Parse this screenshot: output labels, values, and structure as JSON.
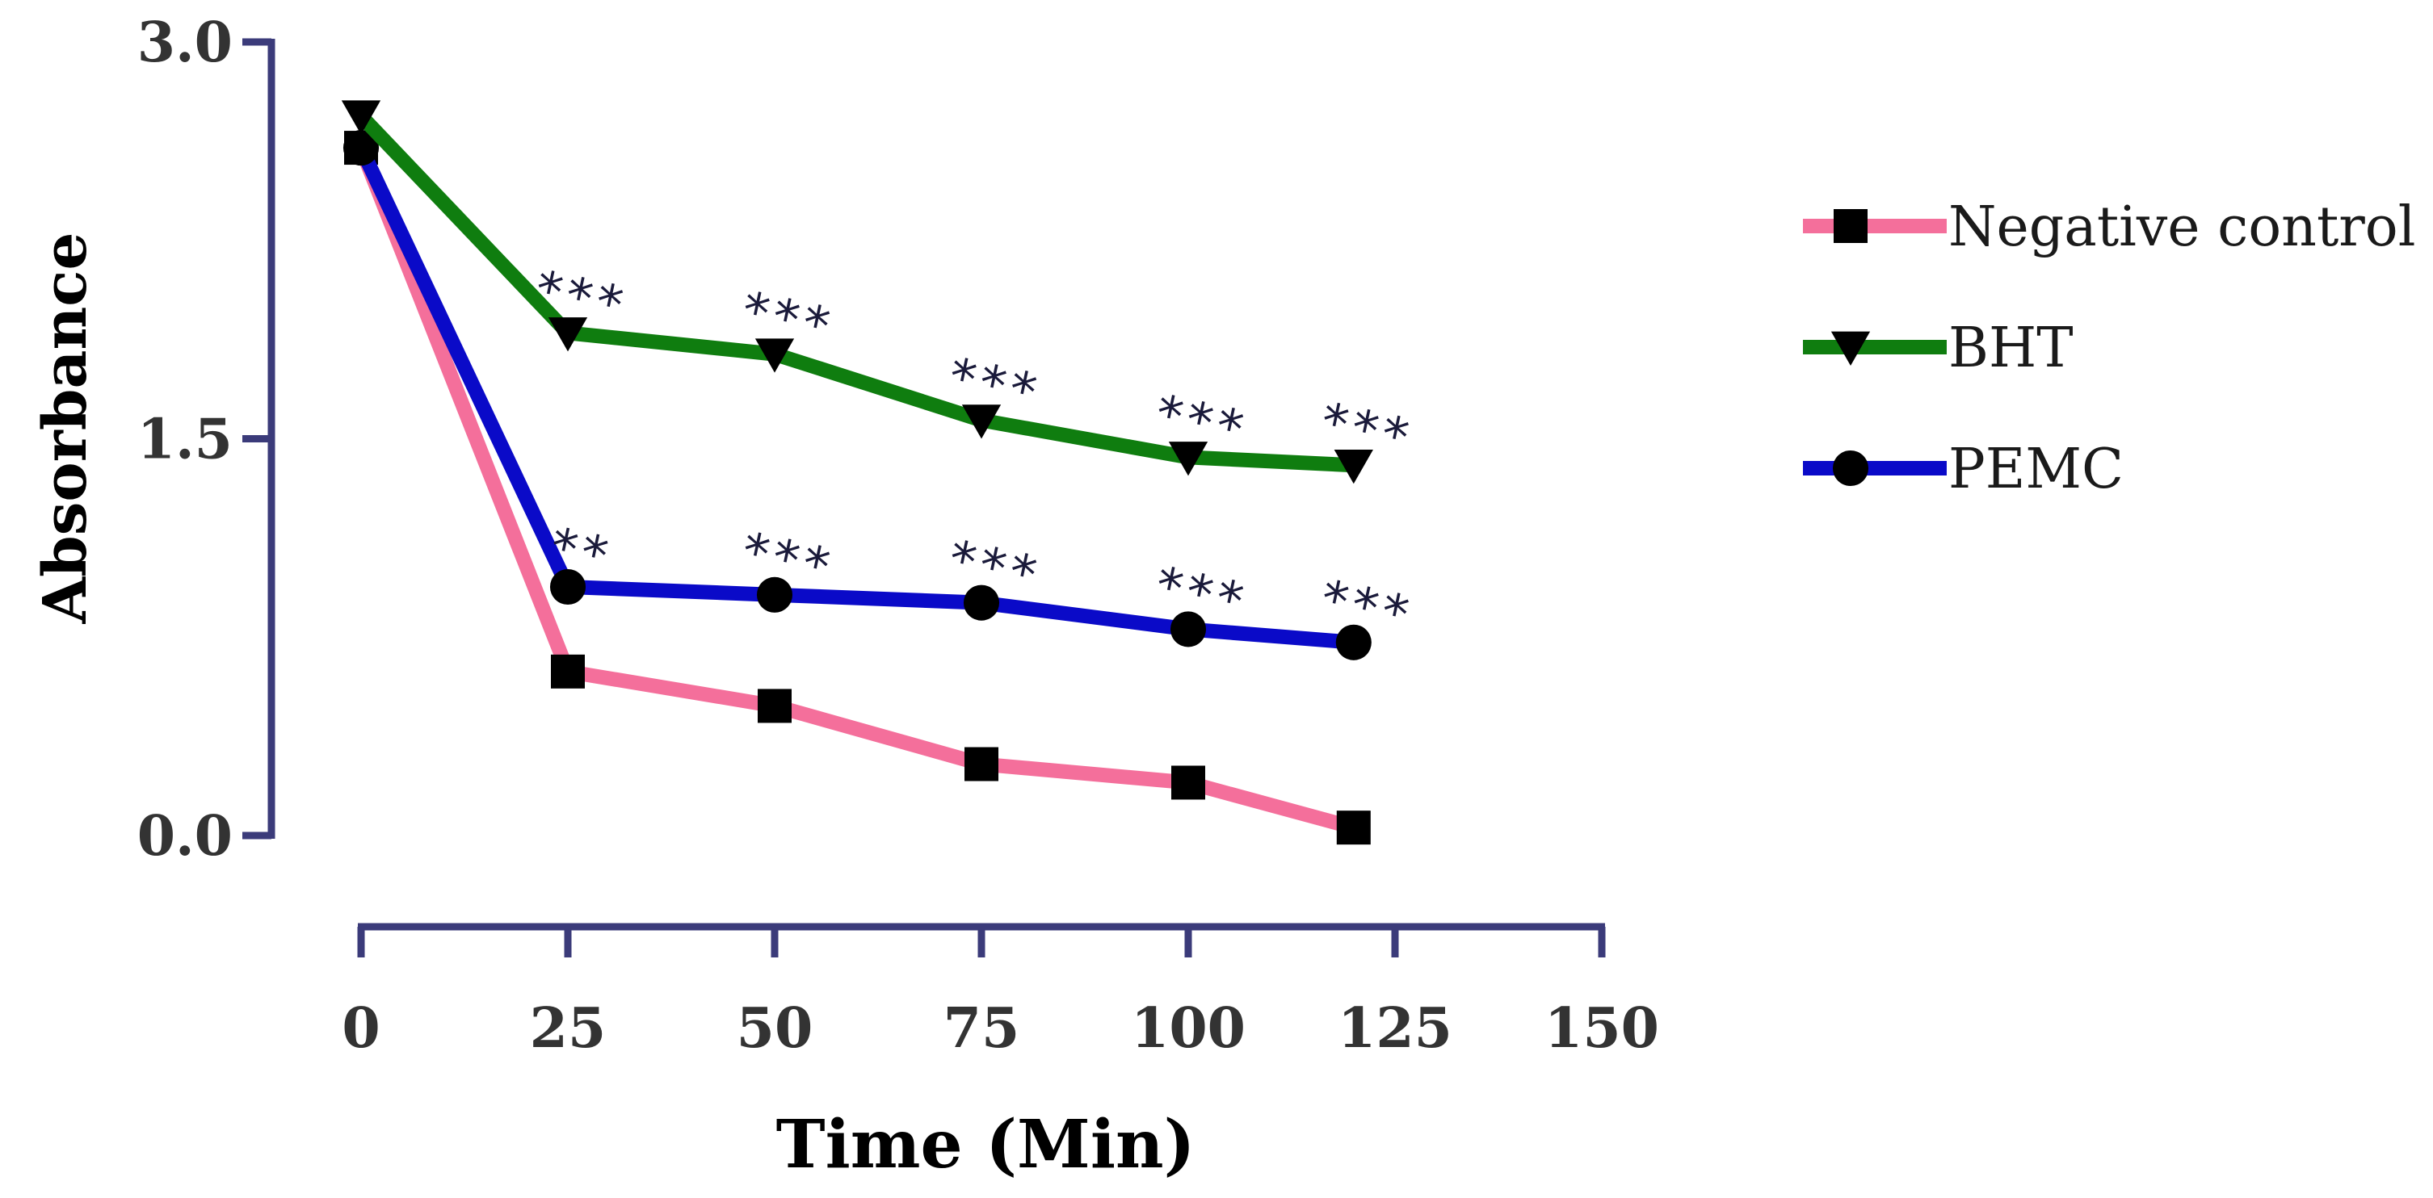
{
  "chart_data": {
    "type": "line",
    "title": "",
    "xlabel": "Time (Min)",
    "ylabel": "Absorbance",
    "xlim": [
      0,
      150
    ],
    "ylim": [
      0,
      3.0
    ],
    "xticks": [
      0,
      25,
      50,
      75,
      100,
      125,
      150
    ],
    "xtick_labels": [
      "0",
      "25",
      "50",
      "75",
      "100",
      "125",
      "150"
    ],
    "yticks": [
      0.0,
      1.5,
      3.0
    ],
    "ytick_labels": [
      "0.0",
      "1.5",
      "3.0"
    ],
    "grid": false,
    "legend_position": "right",
    "axis_color": "#3b3b7a",
    "x": [
      0,
      25,
      50,
      75,
      100,
      120
    ],
    "series": [
      {
        "name": "Negative control",
        "color": "#f46f9b",
        "marker": "square",
        "values": [
          2.6,
          0.62,
          0.49,
          0.27,
          0.2,
          0.03
        ],
        "significance": [
          "",
          "",
          "",
          "",
          "",
          ""
        ]
      },
      {
        "name": "BHT",
        "color": "#0f7d0f",
        "marker": "triangle-down",
        "values": [
          2.72,
          1.9,
          1.82,
          1.57,
          1.43,
          1.4
        ],
        "significance": [
          "",
          "***",
          "***",
          "***",
          "***",
          "***"
        ]
      },
      {
        "name": "PEMC",
        "color": "#0a0ac8",
        "marker": "circle",
        "values": [
          2.6,
          0.94,
          0.91,
          0.88,
          0.78,
          0.73
        ],
        "significance": [
          "",
          "**",
          "***",
          "***",
          "***",
          "***"
        ]
      }
    ]
  }
}
